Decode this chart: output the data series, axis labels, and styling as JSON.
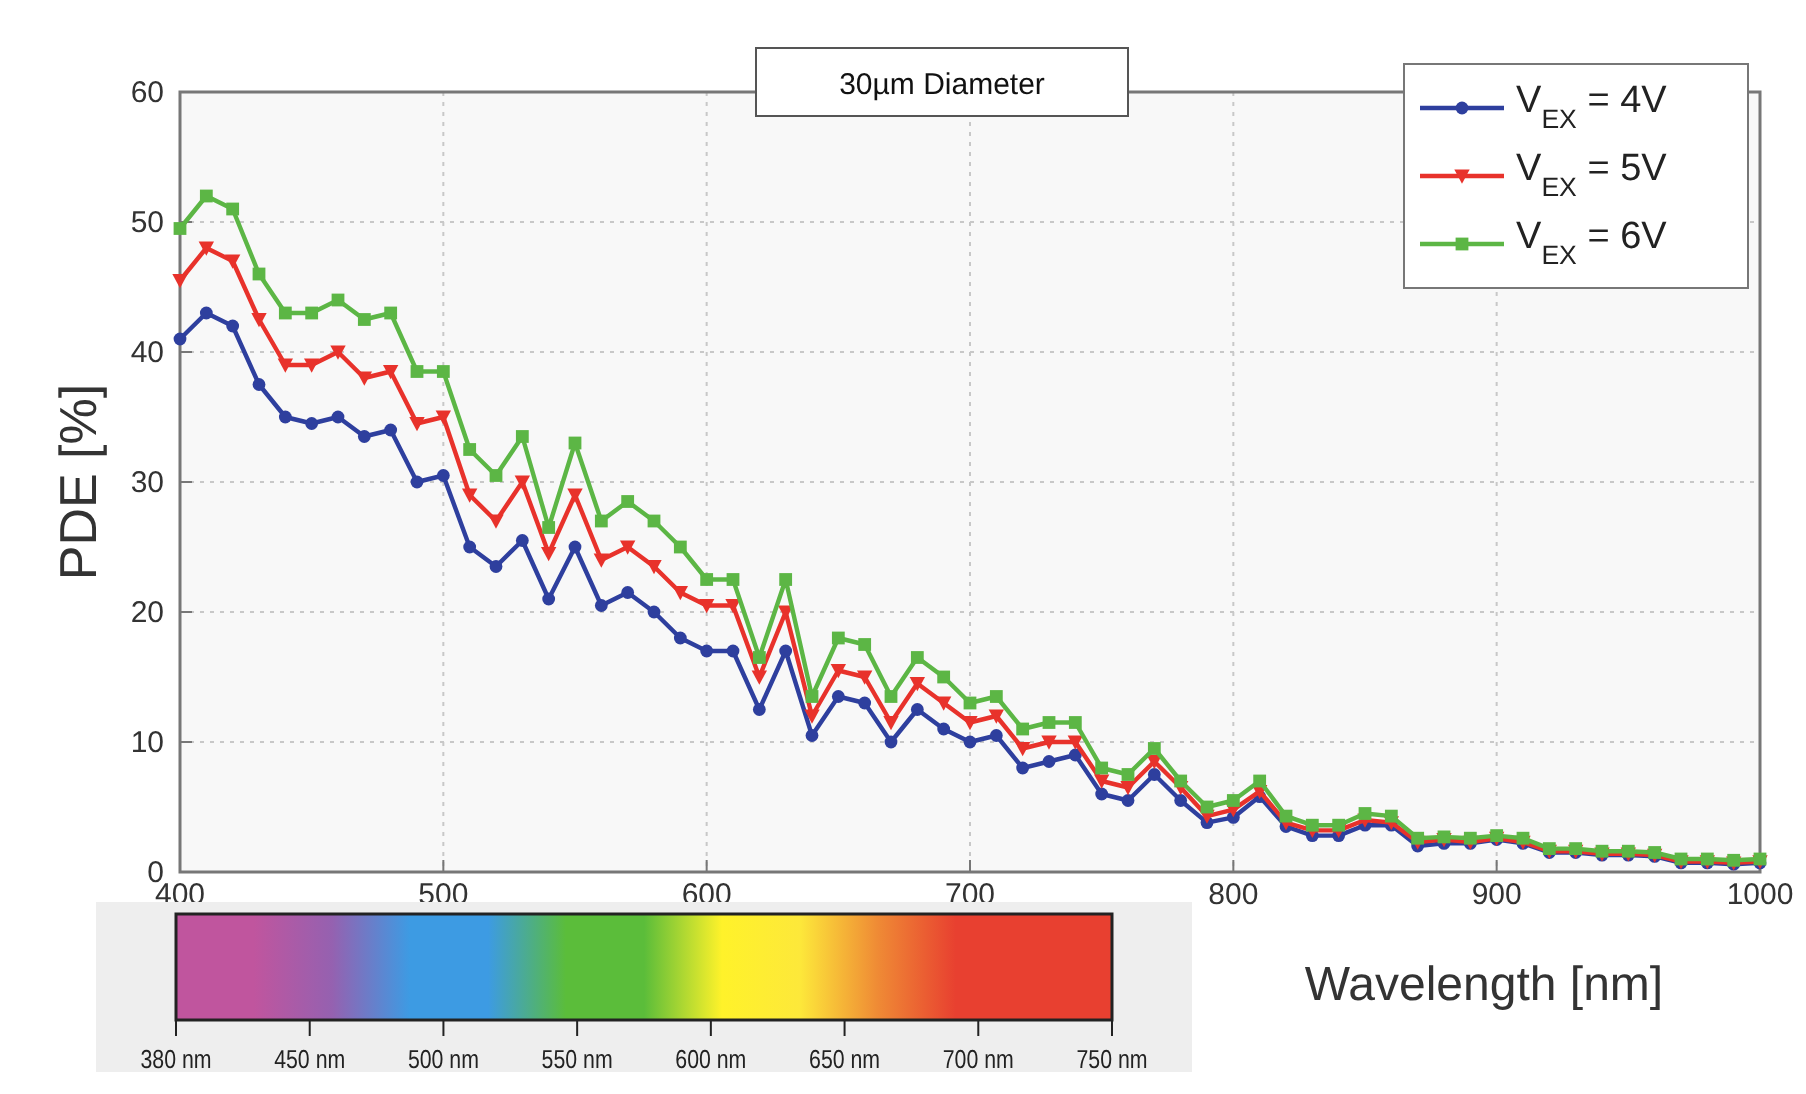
{
  "chart_data": {
    "type": "line",
    "xlabel": "Wavelength [nm]",
    "ylabel": "PDE [%]",
    "annotations": [
      "30µm Diameter",
      "380 nm",
      "450 nm",
      "500 nm",
      "550 nm",
      "600 nm",
      "650 nm",
      "700 nm",
      "750 nm"
    ],
    "x": [
      400,
      410,
      420,
      430,
      440,
      450,
      460,
      470,
      480,
      490,
      500,
      510,
      520,
      530,
      540,
      550,
      560,
      570,
      580,
      590,
      600,
      610,
      620,
      630,
      640,
      650,
      660,
      670,
      680,
      690,
      700,
      710,
      720,
      730,
      740,
      750,
      760,
      770,
      780,
      790,
      800,
      810,
      820,
      830,
      840,
      850,
      860,
      870,
      880,
      890,
      900,
      910,
      920,
      930,
      940,
      950,
      960,
      970,
      980,
      990,
      1000
    ],
    "series": [
      {
        "name": "V$_{EX}$ = 4V",
        "color": "#2e3f9e",
        "marker": "circle",
        "values": [
          41,
          43,
          42,
          37.5,
          35,
          34.5,
          35,
          33.5,
          34,
          30,
          30.5,
          25,
          23.5,
          25.5,
          21,
          25,
          20.5,
          21.5,
          20,
          18,
          17,
          17,
          12.5,
          17,
          10.5,
          13.5,
          13,
          10,
          12.5,
          11,
          10,
          10.5,
          8,
          8.5,
          9,
          6,
          5.5,
          7.5,
          5.5,
          3.8,
          4.2,
          5.8,
          3.5,
          2.8,
          2.8,
          3.6,
          3.6,
          2,
          2.2,
          2.2,
          2.5,
          2.2,
          1.5,
          1.5,
          1.3,
          1.3,
          1.2,
          0.7,
          0.7,
          0.6,
          0.7
        ]
      },
      {
        "name": "V$_{EX}$ = 5V",
        "color": "#e8322b",
        "marker": "triangle",
        "values": [
          45.5,
          48,
          47,
          42.5,
          39,
          39,
          40,
          38,
          38.5,
          34.5,
          35,
          29,
          27,
          30,
          24.5,
          29,
          24,
          25,
          23.5,
          21.5,
          20.5,
          20.5,
          15,
          20,
          12,
          15.5,
          15,
          11.5,
          14.5,
          13,
          11.5,
          12,
          9.5,
          10,
          10,
          7,
          6.5,
          8.5,
          6.5,
          4.3,
          4.8,
          6.2,
          3.8,
          3.2,
          3.2,
          4,
          3.8,
          2.3,
          2.5,
          2.3,
          2.6,
          2.3,
          1.6,
          1.6,
          1.4,
          1.4,
          1.3,
          0.8,
          0.8,
          0.7,
          0.8
        ]
      },
      {
        "name": "V$_{EX}$ = 6V",
        "color": "#5cb645",
        "marker": "square",
        "values": [
          49.5,
          52,
          51,
          46,
          43,
          43,
          44,
          42.5,
          43,
          38.5,
          38.5,
          32.5,
          30.5,
          33.5,
          26.5,
          33,
          27,
          28.5,
          27,
          25,
          22.5,
          22.5,
          16.5,
          22.5,
          13.5,
          18,
          17.5,
          13.5,
          16.5,
          15,
          13,
          13.5,
          11,
          11.5,
          11.5,
          8,
          7.5,
          9.5,
          7,
          5,
          5.5,
          7,
          4.3,
          3.6,
          3.6,
          4.5,
          4.3,
          2.6,
          2.7,
          2.6,
          2.8,
          2.6,
          1.8,
          1.8,
          1.6,
          1.6,
          1.5,
          1,
          1,
          0.9,
          1
        ]
      }
    ],
    "xlim": [
      400,
      1000
    ],
    "xticks": [
      400,
      500,
      600,
      700,
      800,
      900,
      1000
    ],
    "ylim": [
      0,
      60
    ],
    "yticks": [
      0,
      10,
      20,
      30,
      40,
      50,
      60
    ],
    "grid": true,
    "legend": "top right",
    "line_style": "solid"
  }
}
